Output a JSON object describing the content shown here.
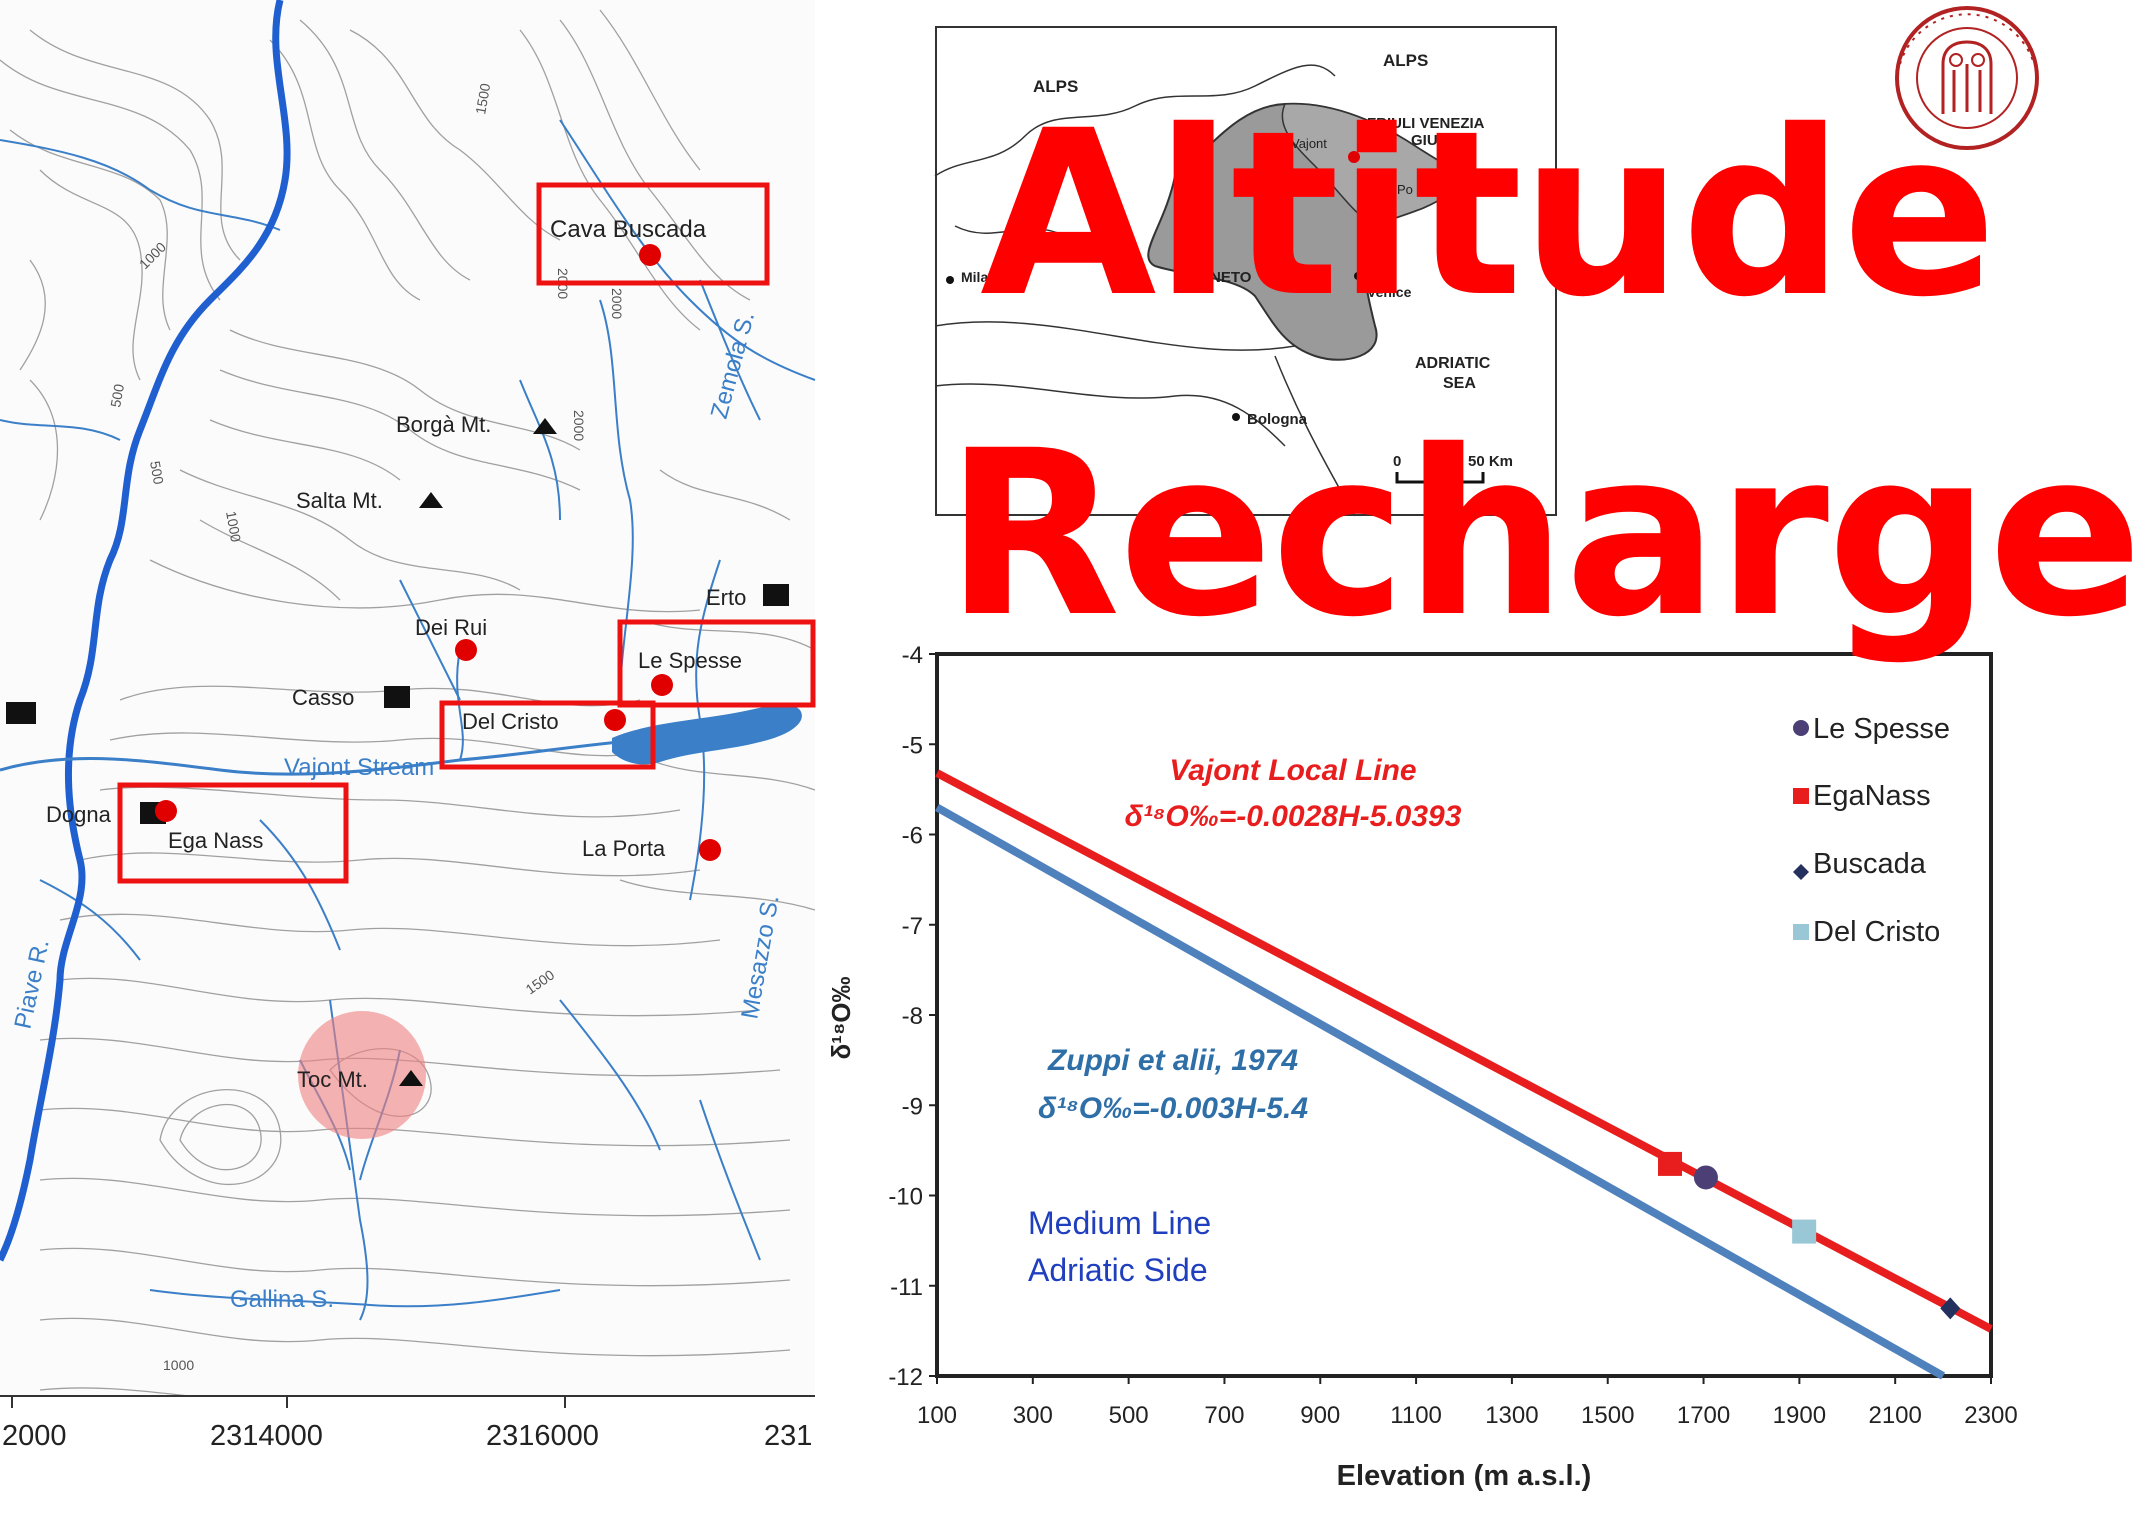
{
  "slide": {
    "title_lines": [
      "Altitude",
      "Recharge"
    ],
    "title_color": "#ff0000"
  },
  "map": {
    "places": {
      "cava_buscada": "Cava Buscada",
      "borga": "Borgà Mt.",
      "salta": "Salta Mt.",
      "erto": "Erto",
      "dei_rui": "Dei Rui",
      "le_spesse": "Le Spesse",
      "casso": "Casso",
      "del_cristo": "Del Cristo",
      "vajont": "Vajont Stream",
      "dogna": "Dogna",
      "ega_nass": "Ega Nass",
      "la_porta": "La Porta",
      "piave": "Piave R.",
      "zemola": "Zemola S.",
      "mesazzo": "Mesazzo S.",
      "toc": "Toc Mt.",
      "gallina": "Gallina S."
    },
    "contours": {
      "c1500a": "1500",
      "c1000a": "1000",
      "c2000a": "2000",
      "c2000b": "2000",
      "c2000c": "2000",
      "c500a": "500",
      "c500b": "500",
      "c1000b": "1000",
      "c1500b": "1500",
      "c1000c": "1000"
    },
    "x_ticks": [
      "2000",
      "2314000",
      "2316000",
      "231"
    ],
    "colors": {
      "river": "#1f5fd0",
      "stream": "#3a7fc8",
      "box": "#ee1111",
      "marker": "#e00000",
      "toc_circle": "#f08080"
    }
  },
  "inset_map": {
    "labels": {
      "alps_left": "ALPS",
      "alps_right": "ALPS",
      "friuli": "FRIULI VENEZIA",
      "giulia": "GIULIA",
      "vajont": "Vajont",
      "po": "Po",
      "milan": "Milan",
      "veneto": "VENETO",
      "venice": "Venice",
      "adriatic": "ADRIATIC",
      "sea": "SEA",
      "bologna": "Bologna"
    },
    "scale": {
      "zero": "0",
      "label": "50 Km"
    }
  },
  "chart_data": {
    "type": "scatter",
    "xlabel": "Elevation (m a.s.l.)",
    "ylabel": "δ¹⁸O‰",
    "xlim": [
      100,
      2300
    ],
    "ylim": [
      -12,
      -4
    ],
    "x_ticks": [
      100,
      300,
      500,
      700,
      900,
      1100,
      1300,
      1500,
      1700,
      1900,
      2100,
      2300
    ],
    "y_ticks": [
      -4,
      -5,
      -6,
      -7,
      -8,
      -9,
      -10,
      -11,
      -12
    ],
    "series": [
      {
        "name": "Le Spesse",
        "marker": "circle",
        "color": "#4b3f75",
        "points": [
          {
            "x": 1705,
            "y": -9.8
          }
        ]
      },
      {
        "name": "EgaNass",
        "marker": "square",
        "color": "#e81e1e",
        "points": [
          {
            "x": 1630,
            "y": -9.65
          }
        ]
      },
      {
        "name": "Buscada",
        "marker": "diamond",
        "color": "#24305e",
        "points": [
          {
            "x": 2215,
            "y": -11.25
          }
        ]
      },
      {
        "name": "Del Cristo",
        "marker": "square",
        "color": "#99c7d6",
        "points": [
          {
            "x": 1910,
            "y": -10.4
          }
        ]
      }
    ],
    "lines": [
      {
        "name": "Vajont Local Line",
        "equation": "δ¹⁸O‰=-0.0028H-5.0393",
        "slope": -0.0028,
        "intercept": -5.0393,
        "color": "#e81e1e"
      },
      {
        "name": "Zuppi et alii, 1974",
        "equation": "δ¹⁸O‰=-0.003H-5.4",
        "slope": -0.003,
        "intercept": -5.4,
        "color": "#4f81bd"
      }
    ],
    "annotations": [
      "Medium Line",
      "Adriatic Side"
    ],
    "legend": "top-right",
    "grid": false
  }
}
